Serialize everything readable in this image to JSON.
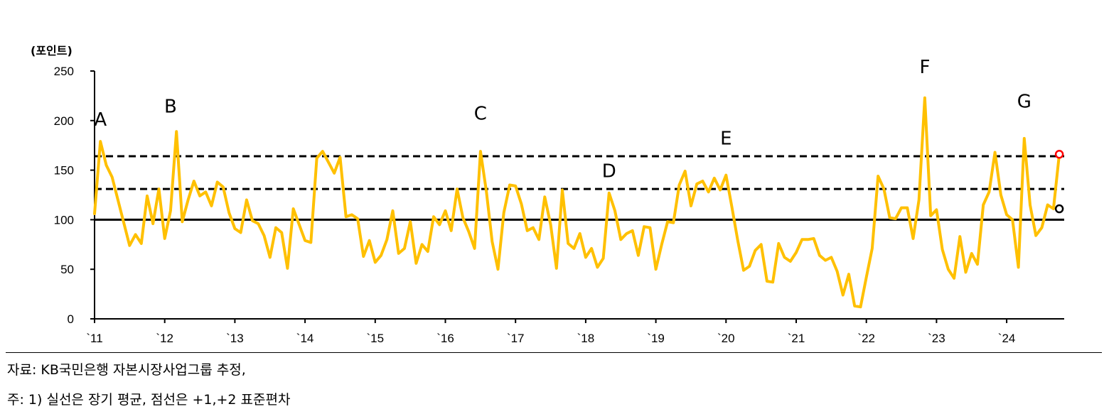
{
  "chart_data": {
    "type": "line",
    "ylabel": "(포인트)",
    "ylim": [
      0,
      250
    ],
    "yticks": [
      "0",
      "50",
      "100",
      "150",
      "200",
      "250"
    ],
    "xticks": [
      "`11",
      "`12",
      "`13",
      "`14",
      "`15",
      "`16",
      "`17",
      "`18",
      "`19",
      "`20",
      "`21",
      "`22",
      "`23",
      "`24"
    ],
    "series": [
      {
        "color": "#FFC000",
        "start": "2011-01",
        "frequency": "monthly",
        "values": [
          106,
          179,
          155,
          143,
          120,
          97,
          74,
          85,
          76,
          124,
          96,
          131,
          81,
          109,
          189,
          98,
          120,
          139,
          124,
          128,
          114,
          138,
          133,
          107,
          91,
          87,
          120,
          99,
          96,
          84,
          62,
          92,
          87,
          51,
          111,
          95,
          79,
          77,
          162,
          169,
          158,
          147,
          163,
          103,
          105,
          101,
          63,
          79,
          57,
          64,
          80,
          109,
          66,
          71,
          98,
          56,
          75,
          68,
          103,
          95,
          109,
          89,
          131,
          102,
          88,
          71,
          169,
          129,
          78,
          50,
          107,
          135,
          134,
          116,
          89,
          92,
          80,
          123,
          95,
          51,
          130,
          76,
          71,
          86,
          62,
          71,
          52,
          61,
          127,
          109,
          80,
          86,
          89,
          64,
          93,
          92,
          50,
          75,
          98,
          97,
          135,
          149,
          114,
          136,
          139,
          128,
          142,
          130,
          145,
          113,
          79,
          49,
          53,
          69,
          75,
          38,
          37,
          76,
          62,
          58,
          67,
          80,
          80,
          81,
          64,
          59,
          62,
          48,
          24,
          45,
          13,
          12,
          42,
          71,
          144,
          131,
          102,
          101,
          112,
          112,
          81,
          120,
          223,
          104,
          110,
          70,
          50,
          41,
          83,
          47,
          66,
          55,
          115,
          128,
          168,
          125,
          105,
          100,
          52,
          182,
          115,
          84,
          92,
          115,
          111,
          166
        ]
      }
    ],
    "reference_lines": [
      {
        "value": 100,
        "style": "solid"
      },
      {
        "value": 131,
        "style": "dashed"
      },
      {
        "value": 164,
        "style": "dashed"
      }
    ],
    "markers": [
      {
        "x": "2024-10",
        "y": 111,
        "color": "#000000"
      },
      {
        "x": "2024-10",
        "y": 166,
        "color": "#FF0000"
      }
    ],
    "annotations": [
      {
        "text": "A",
        "x": "2011-02",
        "y": 195
      },
      {
        "text": "B",
        "x": "2012-02",
        "y": 208
      },
      {
        "text": "C",
        "x": "2016-07",
        "y": 201
      },
      {
        "text": "D",
        "x": "2018-05",
        "y": 143
      },
      {
        "text": "E",
        "x": "2020-01",
        "y": 176
      },
      {
        "text": "F",
        "x": "2022-11",
        "y": 248
      },
      {
        "text": "G",
        "x": "2024-04",
        "y": 213
      }
    ],
    "grid": false,
    "legend": "none"
  },
  "source": "자료: KB국민은행 자본시장사업그룹 추정,",
  "note": "주: 1) 실선은 장기 평균, 점선은 +1,+2 표준편차"
}
